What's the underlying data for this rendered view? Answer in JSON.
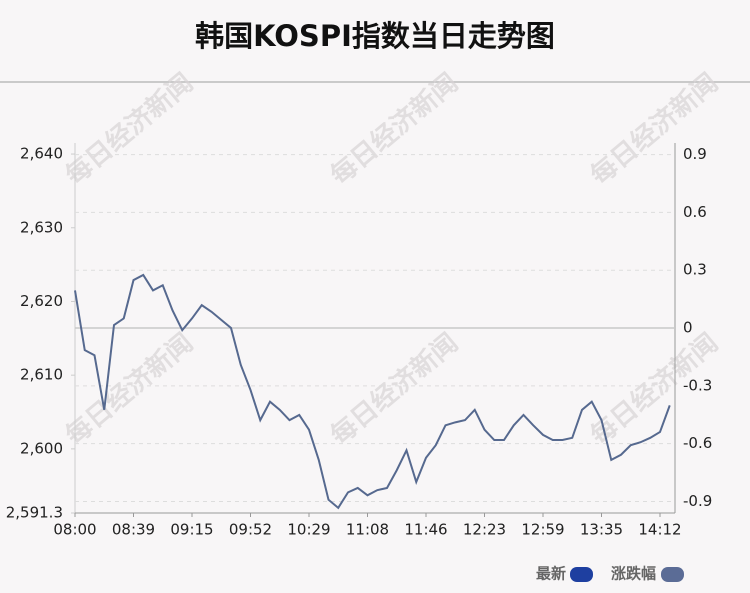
{
  "chart_data": {
    "type": "line",
    "title": "韩国KOSPI指数当日走势图",
    "watermark": "每日经济新闻",
    "categories": [
      "08:00",
      null,
      null,
      null,
      null,
      null,
      "08:39",
      null,
      null,
      null,
      null,
      null,
      "09:15",
      null,
      null,
      null,
      null,
      null,
      "09:52",
      null,
      null,
      null,
      null,
      null,
      "10:29",
      null,
      null,
      null,
      null,
      null,
      "11:08",
      null,
      null,
      null,
      null,
      null,
      "11:46",
      null,
      null,
      null,
      null,
      null,
      "12:23",
      null,
      null,
      null,
      null,
      null,
      "12:59",
      null,
      null,
      null,
      null,
      null,
      "13:35",
      null,
      null,
      null,
      null,
      null,
      "14:12",
      null
    ],
    "series": [
      {
        "name": "最新",
        "color": "#1e3fa0",
        "line_color": "#56698f",
        "values": [
          2621.5,
          2613.4,
          2612.7,
          2605.3,
          2616.8,
          2617.7,
          2622.9,
          2623.6,
          2621.5,
          2622.2,
          2618.8,
          2616.1,
          2617.7,
          2619.5,
          2618.6,
          2617.5,
          2616.4,
          2611.4,
          2608.0,
          2603.9,
          2606.4,
          2605.3,
          2603.9,
          2604.6,
          2602.6,
          2598.5,
          2593.1,
          2592.0,
          2594.1,
          2594.7,
          2593.7,
          2594.4,
          2594.7,
          2597.1,
          2599.8,
          2595.5,
          2598.8,
          2600.5,
          2603.2,
          2603.6,
          2603.9,
          2605.3,
          2602.6,
          2601.2,
          2601.2,
          2603.2,
          2604.6,
          2603.2,
          2601.9,
          2601.2,
          2601.2,
          2601.5,
          2605.3,
          2606.4,
          2603.9,
          2598.5,
          2599.2,
          2600.5,
          2600.9,
          2601.5,
          2602.3,
          2605.9
        ]
      }
    ],
    "y2_name": "涨跌幅",
    "y2_color": "#5b6c96",
    "ylim": [
      2591.3,
      2641.5
    ],
    "yticks": [
      {
        "value": 2640,
        "label": "2,640"
      },
      {
        "value": 2630,
        "label": "2,630"
      },
      {
        "value": 2620,
        "label": "2,620"
      },
      {
        "value": 2610,
        "label": "2,610"
      },
      {
        "value": 2600,
        "label": "2,600"
      },
      {
        "value": 2591.3,
        "label": "2,591.3"
      }
    ],
    "y2lim": [
      -0.96,
      0.96
    ],
    "y2ticks": [
      0.9,
      0.6,
      0.3,
      0,
      -0.3,
      -0.6,
      -0.9
    ],
    "grid": true
  }
}
